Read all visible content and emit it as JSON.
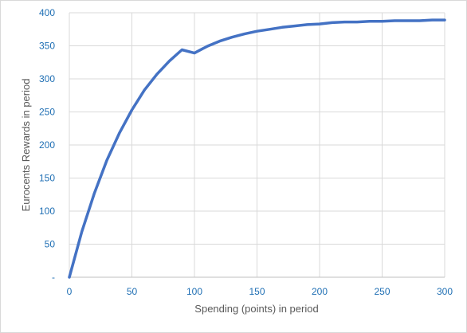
{
  "chart_data": {
    "type": "line",
    "title": "",
    "xlabel": "Spending (points) in period",
    "ylabel": "Eurocents Rewards in period",
    "xlim": [
      0,
      300
    ],
    "ylim": [
      0,
      400
    ],
    "x_ticks": [
      "0",
      "50",
      "100",
      "150",
      "200",
      "250",
      "300"
    ],
    "y_ticks": [
      "-",
      "50",
      "100",
      "150",
      "200",
      "250",
      "300",
      "350",
      "400"
    ],
    "grid": true,
    "legend": "none",
    "series": [
      {
        "color": "#4472c4",
        "x": [
          0,
          10,
          20,
          30,
          40,
          50,
          60,
          70,
          80,
          90,
          100,
          110,
          120,
          130,
          140,
          150,
          160,
          170,
          180,
          190,
          200,
          210,
          220,
          230,
          240,
          250,
          260,
          270,
          280,
          290,
          300
        ],
        "y": [
          0,
          69,
          127,
          177,
          218,
          253,
          283,
          307,
          327,
          344,
          339,
          349,
          357,
          363,
          368,
          372,
          375,
          378,
          380,
          382,
          383,
          385,
          386,
          386,
          387,
          387,
          388,
          388,
          388,
          389,
          389
        ]
      }
    ]
  }
}
